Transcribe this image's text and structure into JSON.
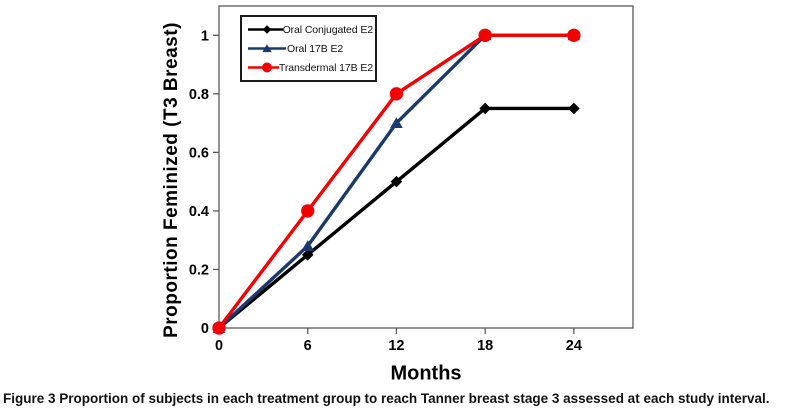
{
  "figure": {
    "caption_label": "Figure 3",
    "caption_text": "Proportion of subjects in each treatment group to reach Tanner breast stage 3 assessed at each study interval."
  },
  "chart_data": {
    "type": "line",
    "title": "",
    "xlabel": "Months",
    "ylabel": "Proportion Feminized (T3 Breast)",
    "x": [
      0,
      6,
      12,
      18,
      24
    ],
    "xticks": [
      "0",
      "6",
      "12",
      "18",
      "24"
    ],
    "yticks": [
      0,
      0.2,
      0.4,
      0.6,
      0.8,
      1
    ],
    "ytick_labels": [
      "0",
      "0.2",
      "0.4",
      "0.6",
      "0.8",
      "1"
    ],
    "xlim": [
      0,
      28
    ],
    "ylim": [
      0,
      1.1
    ],
    "grid": false,
    "legend_position": "top-left",
    "colors": {
      "black_series": "#000000",
      "navy_series": "#1b3a6b",
      "red_series": "#f40000",
      "axis": "#595959"
    },
    "series": [
      {
        "name": "Oral Conjugated E2",
        "color": "#000000",
        "marker": "diamond",
        "values": [
          0,
          0.25,
          0.5,
          0.75,
          0.75
        ]
      },
      {
        "name": "Oral 17B E2",
        "color": "#1b3a6b",
        "marker": "triangle",
        "values": [
          0,
          0.28,
          0.7,
          1.0,
          1.0
        ]
      },
      {
        "name": "Transdermal 17B E2",
        "color": "#f40000",
        "marker": "circle",
        "values": [
          0,
          0.4,
          0.8,
          1.0,
          1.0
        ]
      }
    ]
  }
}
